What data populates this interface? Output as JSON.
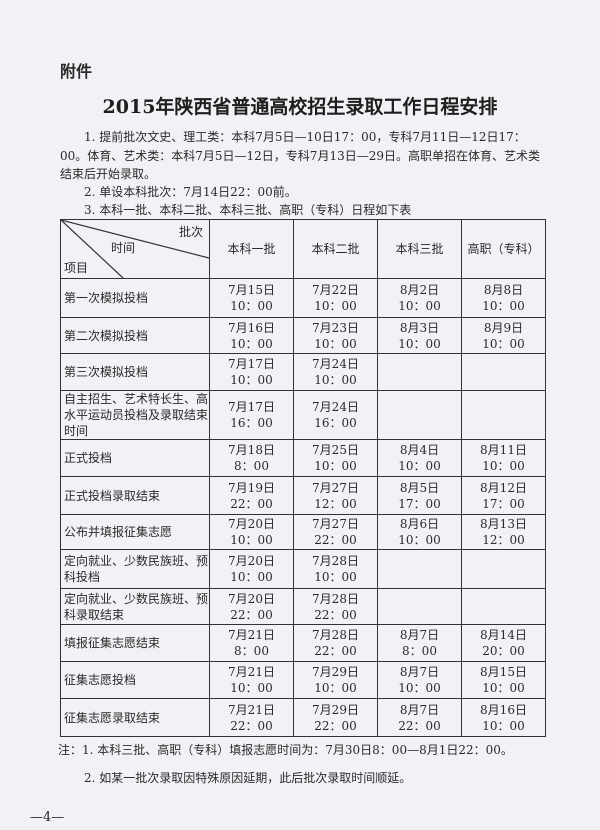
{
  "attachment_label": "附件",
  "title": "2015年陕西省普通高校招生录取工作日程安排",
  "paragraphs": [
    "1. 提前批次文史、理工类：本科7月5日—10日17：00，专科7月11日—12日17：00。体育、艺术类：本科7月5日—12日，专科7月13日—29日。高职单招在体育、艺术类结束后开始录取。",
    "2. 单设本科批次：7月14日22：00前。",
    "3. 本科一批、本科二批、本科三批、高职（专科）日程如下表"
  ],
  "table": {
    "corner": {
      "batch": "批次",
      "time": "时间",
      "item": "项目"
    },
    "columns": [
      "本科一批",
      "本科二批",
      "本科三批",
      "高职（专科）"
    ],
    "rows": [
      {
        "item": "第一次模拟投档",
        "cells": [
          [
            "7月15日",
            "10：00"
          ],
          [
            "7月22日",
            "10：00"
          ],
          [
            "8月2日",
            "10：00"
          ],
          [
            "8月8日",
            "10：00"
          ]
        ]
      },
      {
        "item": "第二次模拟投档",
        "cells": [
          [
            "7月16日",
            "10：00"
          ],
          [
            "7月23日",
            "10：00"
          ],
          [
            "8月3日",
            "10：00"
          ],
          [
            "8月9日",
            "10：00"
          ]
        ]
      },
      {
        "item": "第三次模拟投档",
        "cells": [
          [
            "7月17日",
            "10：00"
          ],
          [
            "7月24日",
            "10：00"
          ],
          [
            "",
            ""
          ],
          [
            "",
            ""
          ]
        ]
      },
      {
        "item": "自主招生、艺术特长生、高水平运动员投档及录取结束时间",
        "cells": [
          [
            "7月17日",
            "16：00"
          ],
          [
            "7月24日",
            "16：00"
          ],
          [
            "",
            ""
          ],
          [
            "",
            ""
          ]
        ]
      },
      {
        "item": "正式投档",
        "cells": [
          [
            "7月18日",
            "8：00"
          ],
          [
            "7月25日",
            "10：00"
          ],
          [
            "8月4日",
            "10：00"
          ],
          [
            "8月11日",
            "10：00"
          ]
        ]
      },
      {
        "item": "正式投档录取结束",
        "cells": [
          [
            "7月19日",
            "22：00"
          ],
          [
            "7月27日",
            "12：00"
          ],
          [
            "8月5日",
            "17：00"
          ],
          [
            "8月12日",
            "17：00"
          ]
        ]
      },
      {
        "item": "公布并填报征集志愿",
        "cells": [
          [
            "7月20日",
            "10：00"
          ],
          [
            "7月27日",
            "22：00"
          ],
          [
            "8月6日",
            "10：00"
          ],
          [
            "8月13日",
            "12：00"
          ]
        ]
      },
      {
        "item": "定向就业、少数民族班、预科投档",
        "cells": [
          [
            "7月20日",
            "10：00"
          ],
          [
            "7月28日",
            "10：00"
          ],
          [
            "",
            ""
          ],
          [
            "",
            ""
          ]
        ]
      },
      {
        "item": "定向就业、少数民族班、预科录取结束",
        "cells": [
          [
            "7月20日",
            "22：00"
          ],
          [
            "7月28日",
            "22：00"
          ],
          [
            "",
            ""
          ],
          [
            "",
            ""
          ]
        ]
      },
      {
        "item": "填报征集志愿结束",
        "cells": [
          [
            "7月21日",
            "8：00"
          ],
          [
            "7月28日",
            "22：00"
          ],
          [
            "8月7日",
            "8：00"
          ],
          [
            "8月14日",
            "20：00"
          ]
        ]
      },
      {
        "item": "征集志愿投档",
        "cells": [
          [
            "7月21日",
            "10：00"
          ],
          [
            "7月29日",
            "10：00"
          ],
          [
            "8月7日",
            "10：00"
          ],
          [
            "8月15日",
            "10：00"
          ]
        ]
      },
      {
        "item": "征集志愿录取结束",
        "cells": [
          [
            "7月21日",
            "22：00"
          ],
          [
            "7月29日",
            "22：00"
          ],
          [
            "8月7日",
            "22：00"
          ],
          [
            "8月16日",
            "10：00"
          ]
        ]
      }
    ]
  },
  "notes": [
    "注：1. 本科三批、高职（专科）填报志愿时间为：7月30日8：00—8月1日22：00。",
    "2. 如某一批次录取因特殊原因延期，此后批次录取时间顺延。"
  ],
  "page_number": "—4—"
}
